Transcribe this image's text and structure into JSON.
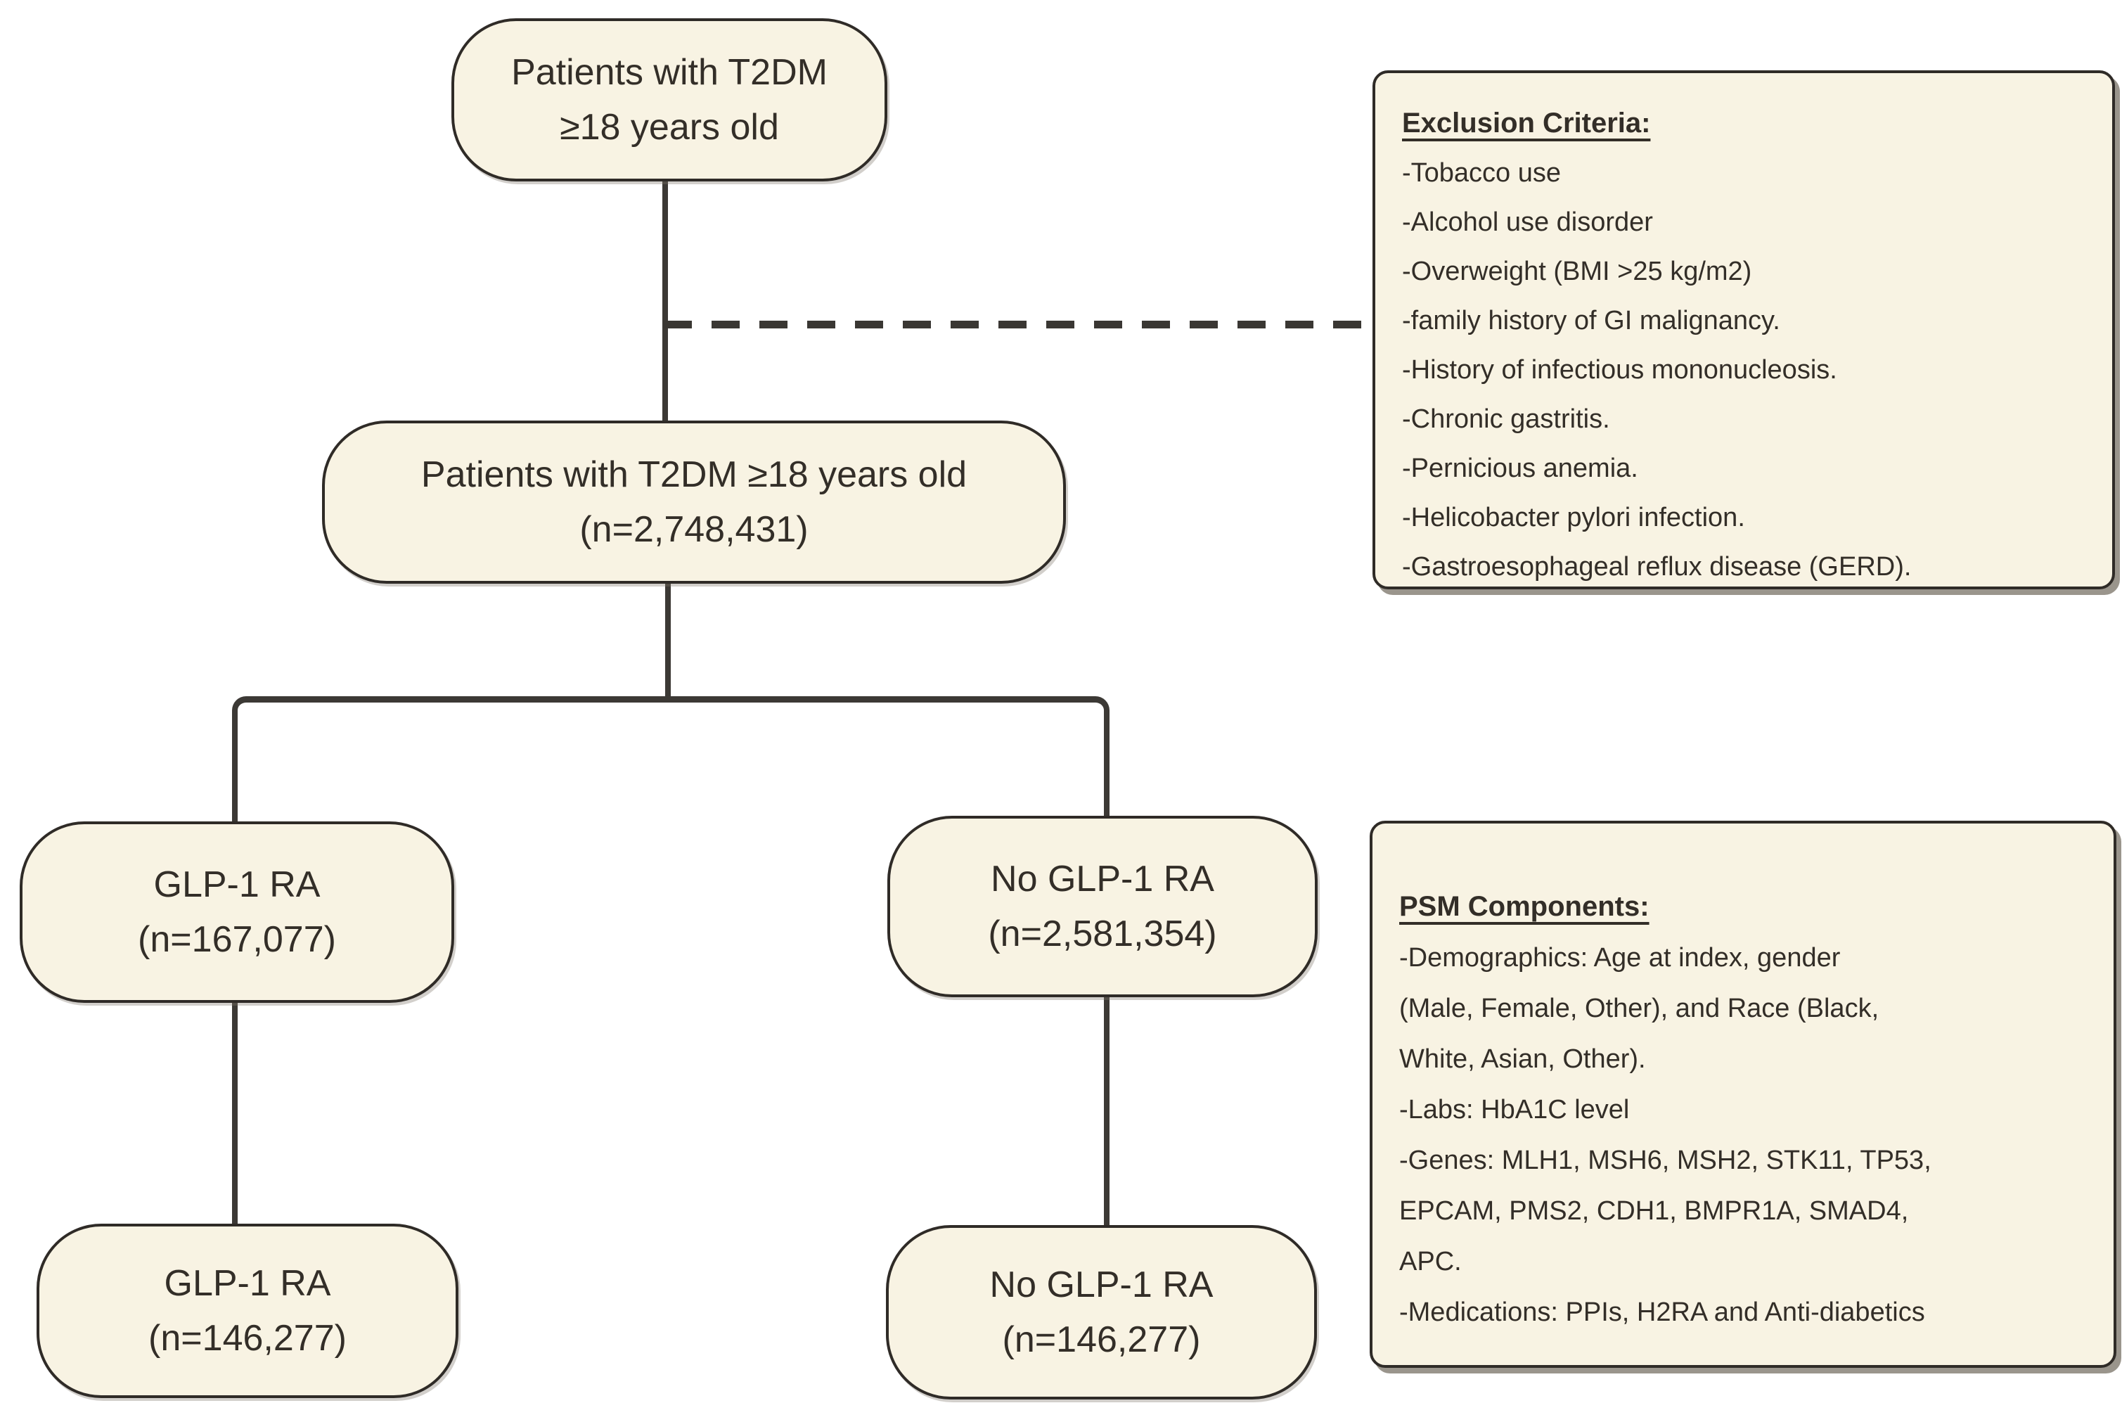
{
  "diagram": {
    "nodes": {
      "top": {
        "lines": [
          "Patients with T2DM",
          "≥18 years old"
        ]
      },
      "cohort": {
        "lines": [
          "Patients with T2DM ≥18 years old",
          "(n=2,748,431)"
        ]
      },
      "glp1": {
        "lines": [
          "GLP-1 RA",
          "(n=167,077)"
        ]
      },
      "no_glp1": {
        "lines": [
          "No GLP-1 RA",
          "(n=2,581,354)"
        ]
      },
      "glp1_matched": {
        "lines": [
          "GLP-1 RA",
          "(n=146,277)"
        ]
      },
      "no_glp1_matched": {
        "lines": [
          "No GLP-1 RA",
          "(n=146,277)"
        ]
      }
    },
    "exclusion": {
      "title": "Exclusion Criteria:",
      "items": [
        "-Tobacco use",
        "-Alcohol use disorder",
        "-Overweight (BMI >25 kg/m2)",
        "-family history of GI malignancy.",
        "-History of infectious mononucleosis.",
        "-Chronic gastritis.",
        "-Pernicious anemia.",
        "-Helicobacter pylori infection.",
        "-Gastroesophageal reflux disease (GERD)."
      ]
    },
    "psm": {
      "title": "PSM Components:",
      "lines": [
        "-Demographics: Age at index, gender",
        "(Male, Female, Other), and Race (Black,",
        "White, Asian, Other).",
        "-Labs: HbA1C level",
        "-Genes: MLH1, MSH6, MSH2, STK11, TP53,",
        "EPCAM, PMS2, CDH1, BMPR1A, SMAD4,",
        "APC.",
        "-Medications: PPIs, H2RA and Anti-diabetics"
      ]
    },
    "colors": {
      "node_fill": "#f8f3e3",
      "border": "#2f2b27",
      "text": "#332e28",
      "connector": "#3c3935",
      "shadow": "#9a958c",
      "background": "#ffffff"
    }
  }
}
